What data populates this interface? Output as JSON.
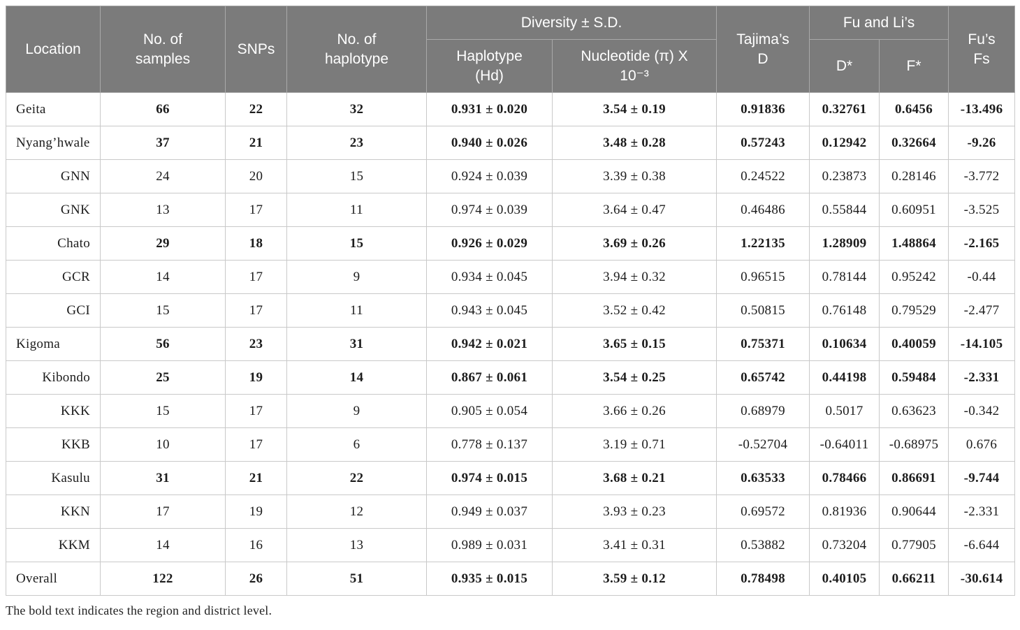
{
  "table": {
    "header": {
      "location": "Location",
      "samples": "No. of\nsamples",
      "snps": "SNPs",
      "haplotypes": "No. of\nhaplotype",
      "diversity_group": "Diversity ± S.D.",
      "haplotype_hd": "Haplotype\n(Hd)",
      "nucleotide": "Nucleotide (π) X\n10⁻³",
      "tajima": "Tajima’s\nD",
      "fu_li_group": "Fu and Li’s",
      "d_star": "D*",
      "f_star": "F*",
      "fus_fs": "Fu’s\nFs"
    },
    "column_keys": [
      "location",
      "samples",
      "snps",
      "haplotypes",
      "hd",
      "pi",
      "tajima",
      "d_star",
      "f_star",
      "fs"
    ],
    "rows": [
      {
        "location": "Geita",
        "samples": "66",
        "snps": "22",
        "haplotypes": "32",
        "hd": "0.931 ± 0.020",
        "pi": "3.54 ± 0.19",
        "tajima": "0.91836",
        "d_star": "0.32761",
        "f_star": "0.6456",
        "fs": "-13.496",
        "bold": true,
        "align": "left"
      },
      {
        "location": "Nyang’hwale",
        "samples": "37",
        "snps": "21",
        "haplotypes": "23",
        "hd": "0.940 ± 0.026",
        "pi": "3.48 ± 0.28",
        "tajima": "0.57243",
        "d_star": "0.12942",
        "f_star": "0.32664",
        "fs": "-9.26",
        "bold": true,
        "align": "left"
      },
      {
        "location": "GNN",
        "samples": "24",
        "snps": "20",
        "haplotypes": "15",
        "hd": "0.924 ± 0.039",
        "pi": "3.39 ± 0.38",
        "tajima": "0.24522",
        "d_star": "0.23873",
        "f_star": "0.28146",
        "fs": "-3.772",
        "bold": false,
        "align": "right"
      },
      {
        "location": "GNK",
        "samples": "13",
        "snps": "17",
        "haplotypes": "11",
        "hd": "0.974 ± 0.039",
        "pi": "3.64 ± 0.47",
        "tajima": "0.46486",
        "d_star": "0.55844",
        "f_star": "0.60951",
        "fs": "-3.525",
        "bold": false,
        "align": "right"
      },
      {
        "location": "Chato",
        "samples": "29",
        "snps": "18",
        "haplotypes": "15",
        "hd": "0.926 ± 0.029",
        "pi": "3.69 ± 0.26",
        "tajima": "1.22135",
        "d_star": "1.28909",
        "f_star": "1.48864",
        "fs": "-2.165",
        "bold": true,
        "align": "right"
      },
      {
        "location": "GCR",
        "samples": "14",
        "snps": "17",
        "haplotypes": "9",
        "hd": "0.934 ± 0.045",
        "pi": "3.94 ± 0.32",
        "tajima": "0.96515",
        "d_star": "0.78144",
        "f_star": "0.95242",
        "fs": "-0.44",
        "bold": false,
        "align": "right"
      },
      {
        "location": "GCI",
        "samples": "15",
        "snps": "17",
        "haplotypes": "11",
        "hd": "0.943 ± 0.045",
        "pi": "3.52 ± 0.42",
        "tajima": "0.50815",
        "d_star": "0.76148",
        "f_star": "0.79529",
        "fs": "-2.477",
        "bold": false,
        "align": "right"
      },
      {
        "location": "Kigoma",
        "samples": "56",
        "snps": "23",
        "haplotypes": "31",
        "hd": "0.942 ± 0.021",
        "pi": "3.65 ± 0.15",
        "tajima": "0.75371",
        "d_star": "0.10634",
        "f_star": "0.40059",
        "fs": "-14.105",
        "bold": true,
        "align": "left"
      },
      {
        "location": "Kibondo",
        "samples": "25",
        "snps": "19",
        "haplotypes": "14",
        "hd": "0.867 ± 0.061",
        "pi": "3.54 ± 0.25",
        "tajima": "0.65742",
        "d_star": "0.44198",
        "f_star": "0.59484",
        "fs": "-2.331",
        "bold": true,
        "align": "right"
      },
      {
        "location": "KKK",
        "samples": "15",
        "snps": "17",
        "haplotypes": "9",
        "hd": "0.905 ± 0.054",
        "pi": "3.66 ± 0.26",
        "tajima": "0.68979",
        "d_star": "0.5017",
        "f_star": "0.63623",
        "fs": "-0.342",
        "bold": false,
        "align": "right"
      },
      {
        "location": "KKB",
        "samples": "10",
        "snps": "17",
        "haplotypes": "6",
        "hd": "0.778 ± 0.137",
        "pi": "3.19 ± 0.71",
        "tajima": "-0.52704",
        "d_star": "-0.64011",
        "f_star": "-0.68975",
        "fs": "0.676",
        "bold": false,
        "align": "right"
      },
      {
        "location": "Kasulu",
        "samples": "31",
        "snps": "21",
        "haplotypes": "22",
        "hd": "0.974 ± 0.015",
        "pi": "3.68 ± 0.21",
        "tajima": "0.63533",
        "d_star": "0.78466",
        "f_star": "0.86691",
        "fs": "-9.744",
        "bold": true,
        "align": "right"
      },
      {
        "location": "KKN",
        "samples": "17",
        "snps": "19",
        "haplotypes": "12",
        "hd": "0.949 ± 0.037",
        "pi": "3.93 ± 0.23",
        "tajima": "0.69572",
        "d_star": "0.81936",
        "f_star": "0.90644",
        "fs": "-2.331",
        "bold": false,
        "align": "right"
      },
      {
        "location": "KKM",
        "samples": "14",
        "snps": "16",
        "haplotypes": "13",
        "hd": "0.989 ± 0.031",
        "pi": "3.41 ± 0.31",
        "tajima": "0.53882",
        "d_star": "0.73204",
        "f_star": "0.77905",
        "fs": "-6.644",
        "bold": false,
        "align": "right"
      },
      {
        "location": "Overall",
        "samples": "122",
        "snps": "26",
        "haplotypes": "51",
        "hd": "0.935 ± 0.015",
        "pi": "3.59 ± 0.12",
        "tajima": "0.78498",
        "d_star": "0.40105",
        "f_star": "0.66211",
        "fs": "-30.614",
        "bold": true,
        "align": "left"
      }
    ],
    "footnote": "The bold text indicates the region and district level."
  },
  "colors": {
    "header_bg": "#7b7b7b",
    "header_text": "#ffffff",
    "header_border": "#a9a9a9",
    "body_border": "#c9c9c9",
    "body_text": "#1c1c1c"
  }
}
